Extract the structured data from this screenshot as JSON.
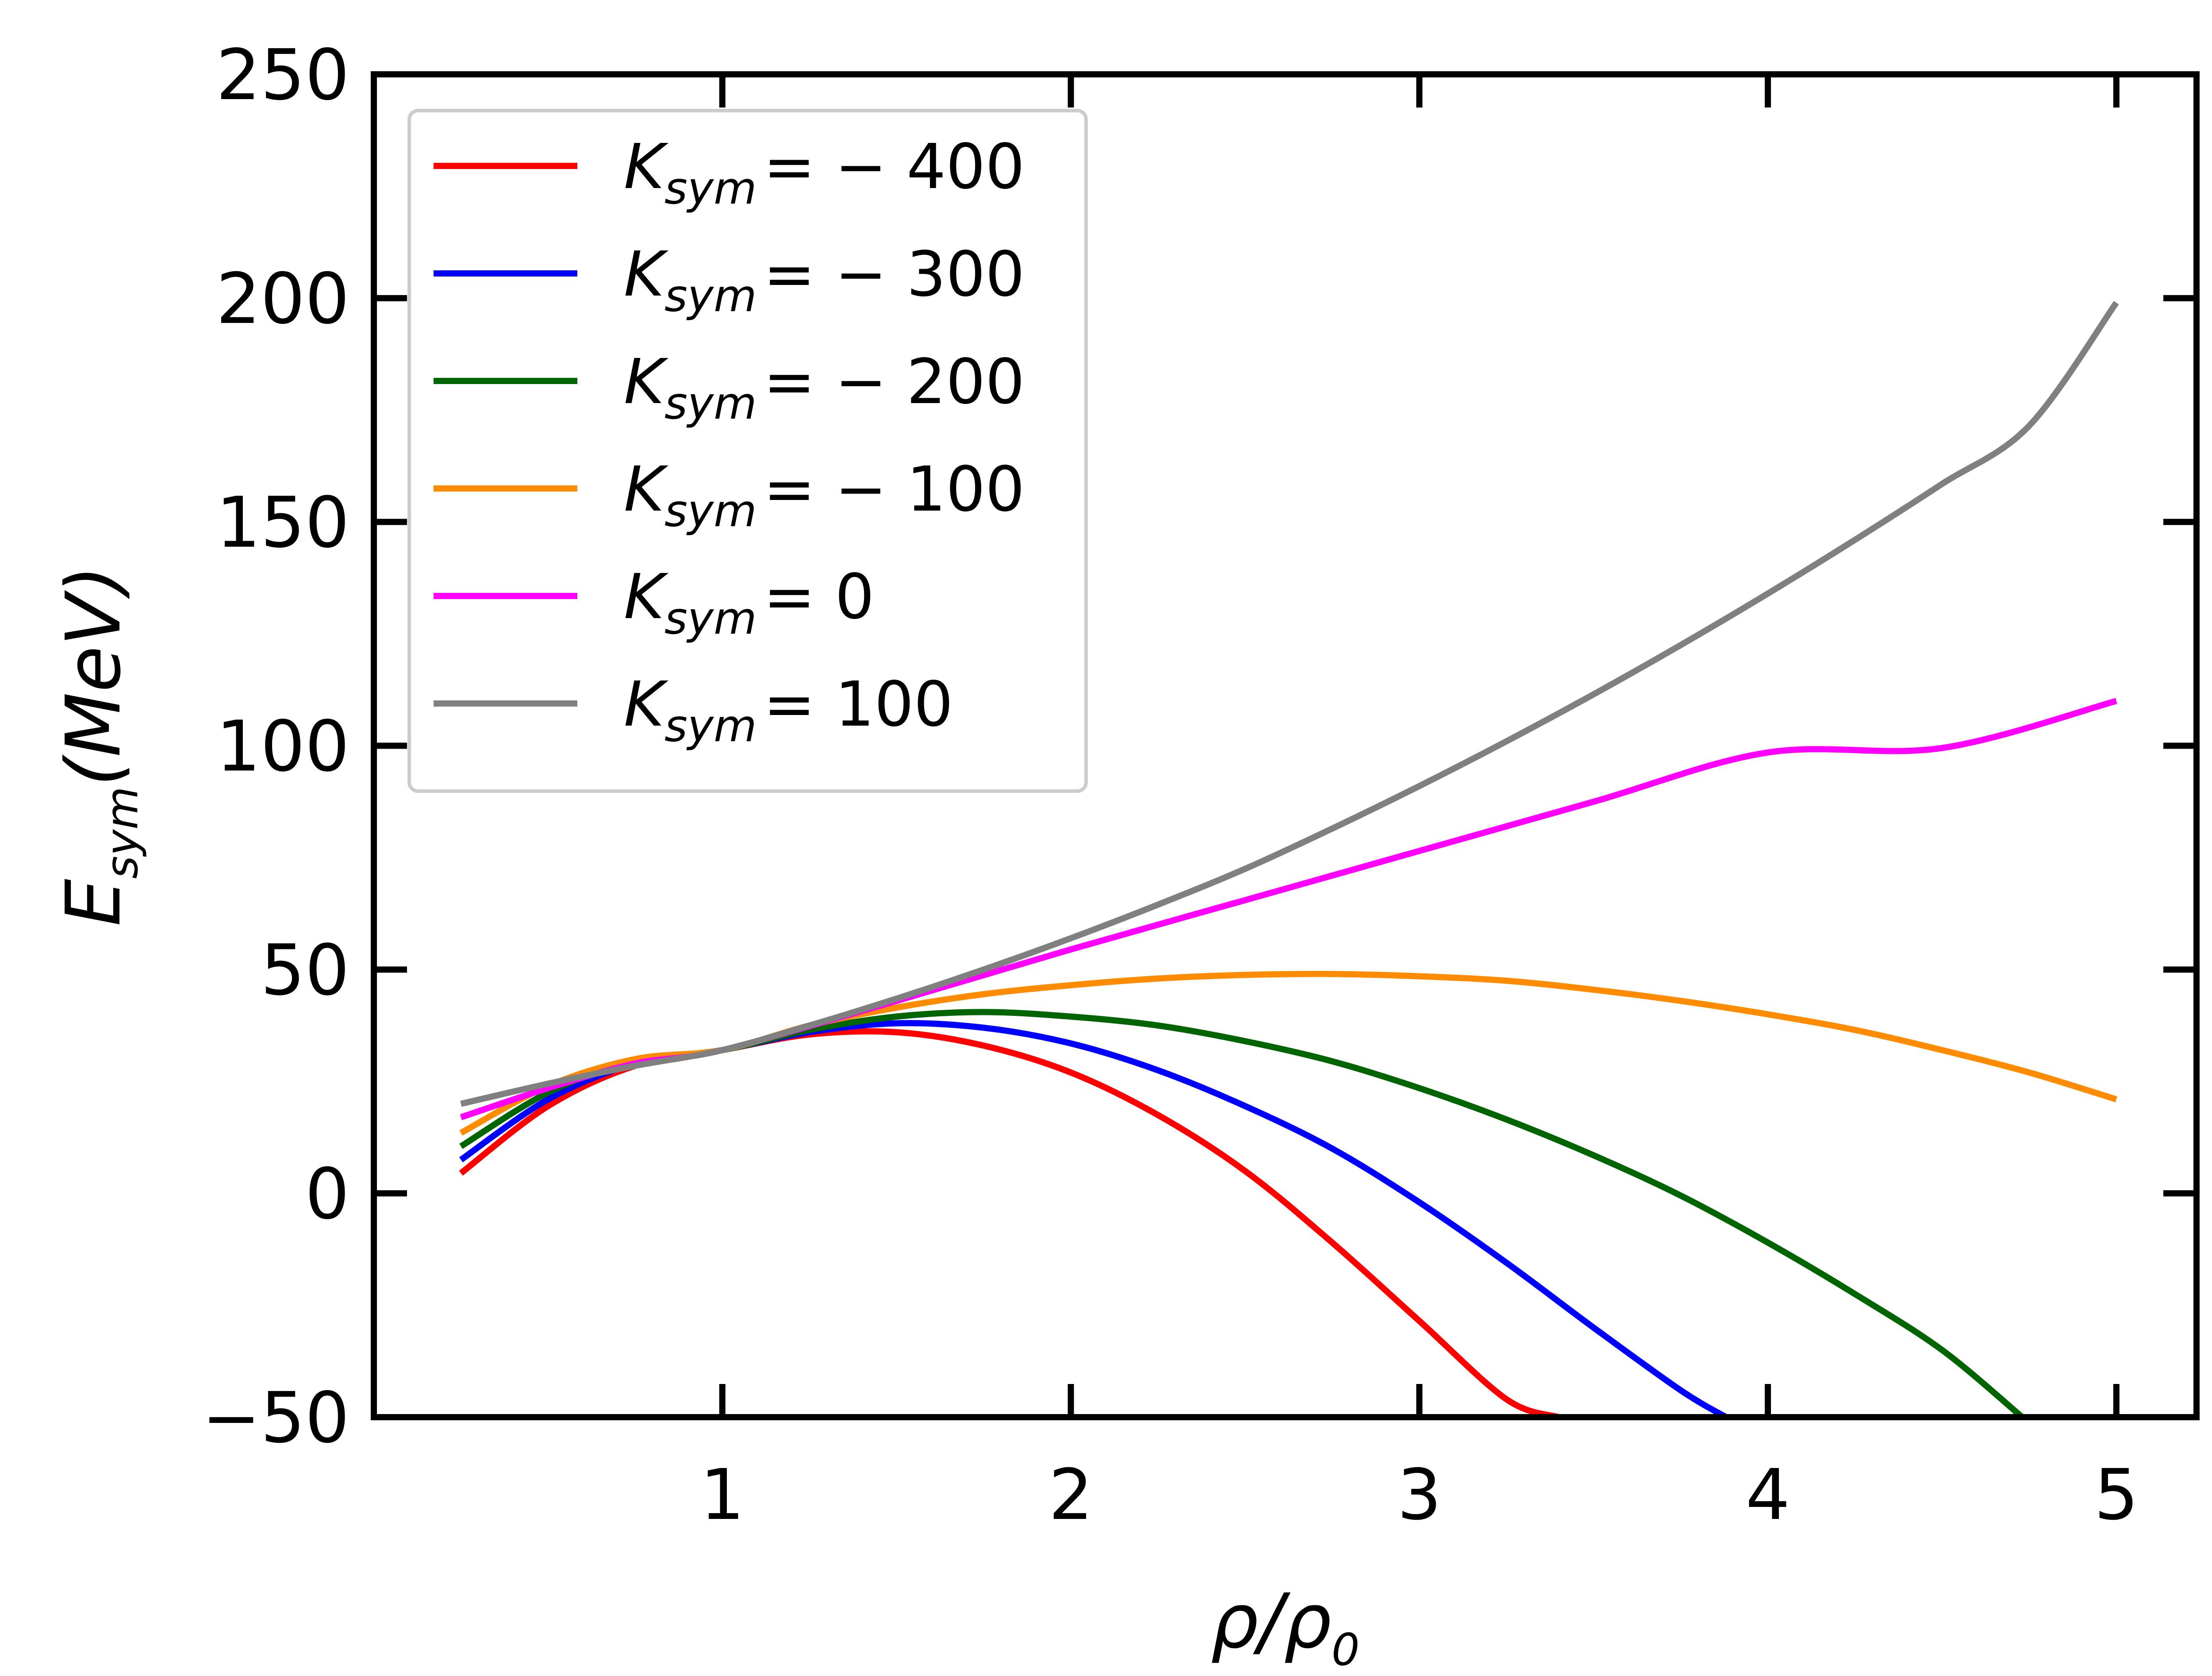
{
  "chart_data": {
    "type": "line",
    "title": "",
    "xlabel": {
      "base": "ρ/ρ",
      "sub": "0"
    },
    "ylabel": {
      "base": "E",
      "sub": "sym",
      "suffix": "(MeV)"
    },
    "xlim": [
      0.0,
      5.23
    ],
    "ylim": [
      -50,
      250
    ],
    "xticks": [
      1,
      2,
      3,
      4,
      5
    ],
    "yticks": [
      -50,
      0,
      50,
      100,
      150,
      200,
      250
    ],
    "xtick_labels": [
      "1",
      "2",
      "3",
      "4",
      "5"
    ],
    "ytick_labels": [
      "−50",
      "0",
      "50",
      "100",
      "150",
      "200",
      "250"
    ],
    "grid": false,
    "legend_position": "upper-left",
    "x_range": [
      0.25,
      5.0
    ],
    "series": [
      {
        "name": "-400",
        "label": {
          "base": "K",
          "sub": "sym",
          "rest": "= − 400"
        },
        "color": "#ff0000",
        "x": [
          0.25,
          0.5,
          0.75,
          1.0,
          1.25,
          1.5,
          1.75,
          2.0,
          2.25,
          2.5,
          2.75,
          3.0,
          3.25,
          3.4
        ],
        "y": [
          4.5,
          19.5,
          28.5,
          32.0,
          35.5,
          36.0,
          33.0,
          27.0,
          17.5,
          5.0,
          -11.0,
          -28.5,
          -46.0,
          -50.0
        ]
      },
      {
        "name": "-300",
        "label": {
          "base": "K",
          "sub": "sym",
          "rest": "= − 300"
        },
        "color": "#0000ff",
        "x": [
          0.25,
          0.5,
          0.75,
          1.0,
          1.25,
          1.5,
          1.75,
          2.0,
          2.25,
          2.5,
          2.75,
          3.0,
          3.25,
          3.5,
          3.75,
          3.88
        ],
        "y": [
          7.5,
          21.0,
          29.0,
          32.0,
          36.0,
          38.0,
          37.0,
          33.5,
          27.5,
          19.5,
          10.0,
          -2.0,
          -15.5,
          -30.0,
          -44.0,
          -50.0
        ]
      },
      {
        "name": "-200",
        "label": {
          "base": "K",
          "sub": "sym",
          "rest": "= − 200"
        },
        "color": "#006400",
        "x": [
          0.25,
          0.5,
          0.75,
          1.0,
          1.25,
          1.5,
          1.75,
          2.0,
          2.25,
          2.5,
          2.75,
          3.0,
          3.25,
          3.5,
          3.75,
          4.0,
          4.25,
          4.5,
          4.73
        ],
        "y": [
          10.5,
          22.5,
          29.5,
          32.0,
          36.5,
          39.5,
          40.5,
          39.5,
          37.5,
          34.0,
          29.5,
          23.5,
          16.5,
          8.5,
          -0.5,
          -11.0,
          -22.5,
          -35.0,
          -50.0
        ]
      },
      {
        "name": "-100",
        "label": {
          "base": "K",
          "sub": "sym",
          "rest": "= − 100"
        },
        "color": "#ff8c00",
        "x": [
          0.25,
          0.5,
          0.75,
          1.0,
          1.25,
          1.5,
          1.75,
          2.0,
          2.25,
          2.5,
          2.75,
          3.0,
          3.25,
          3.5,
          3.75,
          4.0,
          4.25,
          4.5,
          4.75,
          5.0
        ],
        "y": [
          13.5,
          24.0,
          30.0,
          32.0,
          37.5,
          41.5,
          44.5,
          46.5,
          48.0,
          48.8,
          49.0,
          48.5,
          47.5,
          45.5,
          43.0,
          40.0,
          36.5,
          32.0,
          27.0,
          21.0
        ]
      },
      {
        "name": "0",
        "label": {
          "base": "K",
          "sub": "sym",
          "rest": "= 0"
        },
        "color": "#ff00ff",
        "x": [
          0.25,
          0.5,
          0.75,
          1.0,
          1.5,
          2.0,
          2.5,
          3.0,
          3.5,
          4.0,
          4.5,
          5.0
        ],
        "y": [
          17.0,
          23.5,
          29.0,
          32.0,
          43.0,
          54.5,
          65.5,
          76.5,
          87.5,
          98.5,
          99.5,
          110.0
        ]
      },
      {
        "name": "100",
        "label": {
          "base": "K",
          "sub": "sym",
          "rest": "= 100"
        },
        "color": "#808080",
        "x": [
          0.25,
          0.5,
          0.75,
          1.0,
          1.25,
          1.5,
          1.75,
          2.0,
          2.25,
          2.5,
          2.75,
          3.0,
          3.25,
          3.5,
          3.75,
          4.0,
          4.25,
          4.5,
          4.75,
          5.0
        ],
        "y": [
          20.0,
          24.5,
          28.5,
          32.0,
          37.5,
          43.5,
          50.0,
          57.0,
          64.5,
          72.5,
          81.5,
          91.0,
          101.0,
          111.5,
          122.5,
          134.0,
          146.0,
          158.5,
          171.5,
          199.0
        ]
      }
    ]
  }
}
